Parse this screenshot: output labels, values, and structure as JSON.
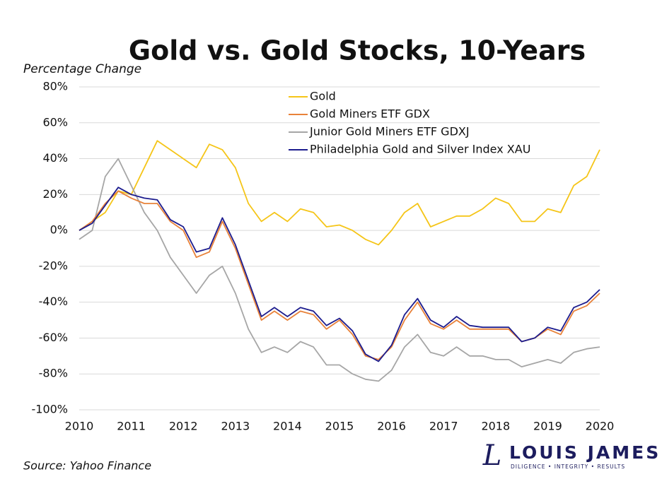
{
  "chart_data": {
    "type": "line",
    "title": "Gold vs. Gold Stocks, 10-Years",
    "y_label": "Percentage Change",
    "source": "Source: Yahoo Finance",
    "logo": {
      "mark": "L",
      "name": "LOUIS JAMES",
      "tagline": "DILIGENCE • INTEGRITY • RESULTS"
    },
    "x": [
      2010,
      2010.25,
      2010.5,
      2010.75,
      2011,
      2011.25,
      2011.5,
      2011.75,
      2012,
      2012.25,
      2012.5,
      2012.75,
      2013,
      2013.25,
      2013.5,
      2013.75,
      2014,
      2014.25,
      2014.5,
      2014.75,
      2015,
      2015.25,
      2015.5,
      2015.75,
      2016,
      2016.25,
      2016.5,
      2016.75,
      2017,
      2017.25,
      2017.5,
      2017.75,
      2018,
      2018.25,
      2018.5,
      2018.75,
      2019,
      2019.25,
      2019.5,
      2019.75,
      2020
    ],
    "series": [
      {
        "name": "Gold",
        "color": "#f5c518",
        "values": [
          0,
          5,
          10,
          22,
          20,
          35,
          50,
          45,
          40,
          35,
          48,
          45,
          35,
          15,
          5,
          10,
          5,
          12,
          10,
          2,
          3,
          0,
          -5,
          -8,
          0,
          10,
          15,
          2,
          5,
          8,
          8,
          12,
          18,
          15,
          5,
          5,
          12,
          10,
          25,
          30,
          45
        ]
      },
      {
        "name": "Gold Miners ETF GDX",
        "color": "#e8823a",
        "values": [
          0,
          5,
          15,
          22,
          18,
          15,
          15,
          5,
          0,
          -15,
          -12,
          5,
          -10,
          -30,
          -50,
          -45,
          -50,
          -45,
          -47,
          -55,
          -50,
          -58,
          -70,
          -72,
          -65,
          -50,
          -40,
          -52,
          -55,
          -50,
          -55,
          -55,
          -55,
          -55,
          -62,
          -60,
          -55,
          -58,
          -45,
          -42,
          -35
        ]
      },
      {
        "name": "Junior Gold Miners ETF GDXJ",
        "color": "#a6a6a6",
        "values": [
          -5,
          0,
          30,
          40,
          25,
          10,
          0,
          -15,
          -25,
          -35,
          -25,
          -20,
          -35,
          -55,
          -68,
          -65,
          -68,
          -62,
          -65,
          -75,
          -75,
          -80,
          -83,
          -84,
          -78,
          -65,
          -58,
          -68,
          -70,
          -65,
          -70,
          -70,
          -72,
          -72,
          -76,
          -74,
          -72,
          -74,
          -68,
          -66,
          -65
        ]
      },
      {
        "name": "Philadelphia Gold and Silver Index XAU",
        "color": "#1c1c8e",
        "values": [
          0,
          4,
          14,
          24,
          20,
          18,
          17,
          6,
          2,
          -12,
          -10,
          7,
          -8,
          -28,
          -48,
          -43,
          -48,
          -43,
          -45,
          -53,
          -49,
          -56,
          -69,
          -73,
          -64,
          -47,
          -38,
          -50,
          -54,
          -48,
          -53,
          -54,
          -54,
          -54,
          -62,
          -60,
          -54,
          -56,
          -43,
          -40,
          -33
        ]
      }
    ],
    "xlim": [
      2010,
      2020
    ],
    "xticks": [
      2010,
      2011,
      2012,
      2013,
      2014,
      2015,
      2016,
      2017,
      2018,
      2019,
      2020
    ],
    "ylim": [
      -100,
      80
    ],
    "yticks": [
      {
        "value": -100,
        "label": "-100%"
      },
      {
        "value": -80,
        "label": "-80%"
      },
      {
        "value": -60,
        "label": "-60%"
      },
      {
        "value": -40,
        "label": "-40%"
      },
      {
        "value": -20,
        "label": "-20%"
      },
      {
        "value": 0,
        "label": "0%"
      },
      {
        "value": 20,
        "label": "20%"
      },
      {
        "value": 40,
        "label": "40%"
      },
      {
        "value": 60,
        "label": "60%"
      },
      {
        "value": 80,
        "label": "80%"
      }
    ],
    "grid": true
  }
}
